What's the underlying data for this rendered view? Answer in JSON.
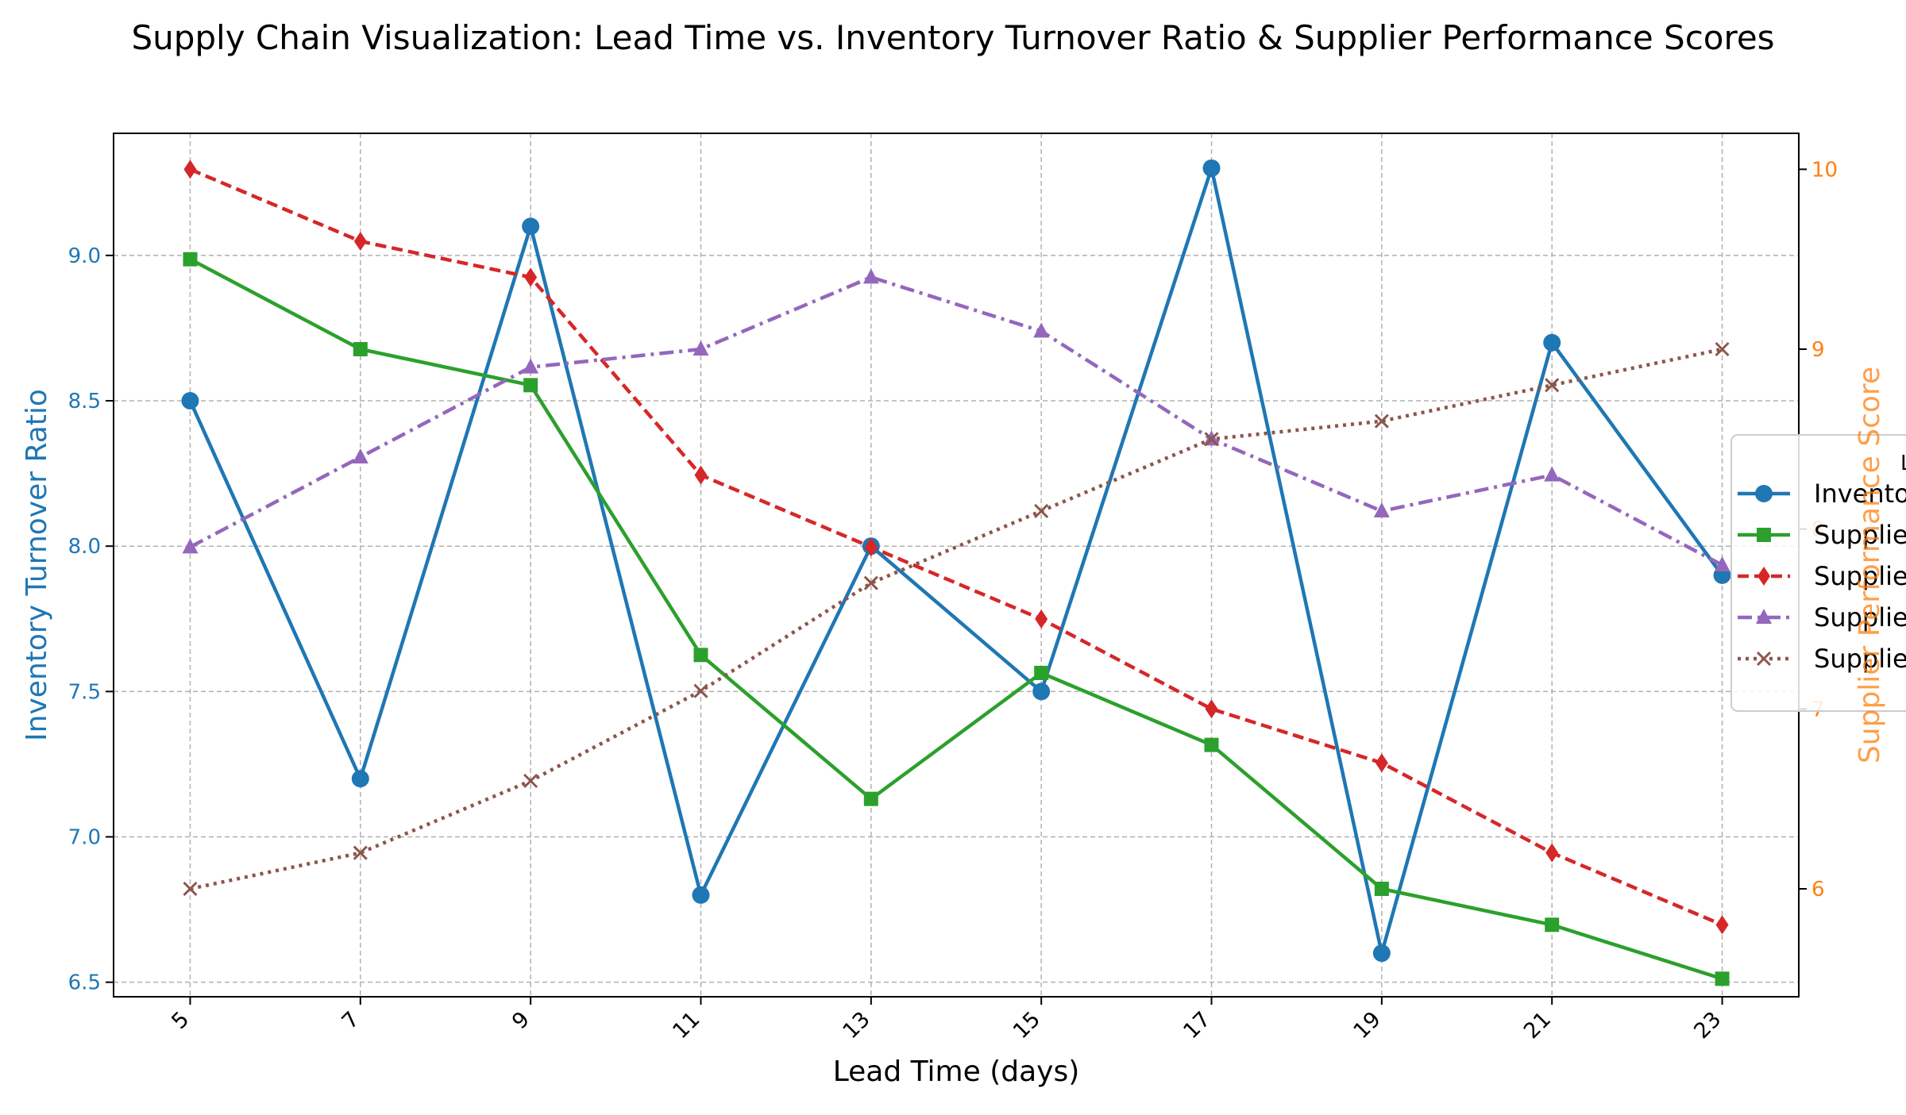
{
  "chart_data": {
    "type": "line",
    "title": "Supply Chain Visualization: Lead Time vs. Inventory Turnover Ratio & Supplier Performance Scores",
    "xlabel": "Lead Time (days)",
    "ylabel_left": "Inventory Turnover Ratio",
    "ylabel_right": "Supplier Performance Score",
    "x": [
      5,
      7,
      9,
      11,
      13,
      15,
      17,
      19,
      21,
      23
    ],
    "xlim": [
      4.1,
      23.9
    ],
    "ylim_left": [
      6.45,
      9.42
    ],
    "ylim_right": [
      5.4,
      10.2
    ],
    "yticks_left": [
      "6.5",
      "7.0",
      "7.5",
      "8.0",
      "8.5",
      "9.0"
    ],
    "yticks_right": [
      "6",
      "7",
      "8",
      "9",
      "10"
    ],
    "grid": true,
    "legend_placement": "right",
    "legend_title": "L",
    "colors": {
      "left_axis": "#1f77b4",
      "right_axis": "#ff7f0e",
      "grid": "#b0b0b0"
    },
    "series": [
      {
        "name": "Invento",
        "axis": "left",
        "color": "#1f77b4",
        "marker": "circle",
        "linestyle": "solid",
        "values": [
          8.5,
          7.2,
          9.1,
          6.8,
          8.0,
          7.5,
          9.3,
          6.6,
          8.7,
          7.9
        ]
      },
      {
        "name": "Supplie",
        "axis": "right",
        "color": "#2ca02c",
        "marker": "square",
        "linestyle": "solid",
        "values": [
          9.5,
          9.0,
          8.8,
          7.3,
          6.5,
          7.2,
          6.8,
          6.0,
          5.8,
          5.5
        ]
      },
      {
        "name": "Supplie",
        "axis": "right",
        "color": "#d62728",
        "marker": "diamond",
        "linestyle": "dashed",
        "values": [
          10.0,
          9.6,
          9.4,
          8.3,
          7.9,
          7.5,
          7.0,
          6.7,
          6.2,
          5.8
        ]
      },
      {
        "name": "Supplie",
        "axis": "right",
        "color": "#9467bd",
        "marker": "triangle",
        "linestyle": "dashdot",
        "values": [
          7.9,
          8.4,
          8.9,
          9.0,
          9.4,
          9.1,
          8.5,
          8.1,
          8.3,
          7.8
        ]
      },
      {
        "name": "Supplie",
        "axis": "right",
        "color": "#8c564b",
        "marker": "x",
        "linestyle": "dotted",
        "values": [
          6.0,
          6.2,
          6.6,
          7.1,
          7.7,
          8.1,
          8.5,
          8.6,
          8.8,
          9.0
        ]
      }
    ]
  }
}
